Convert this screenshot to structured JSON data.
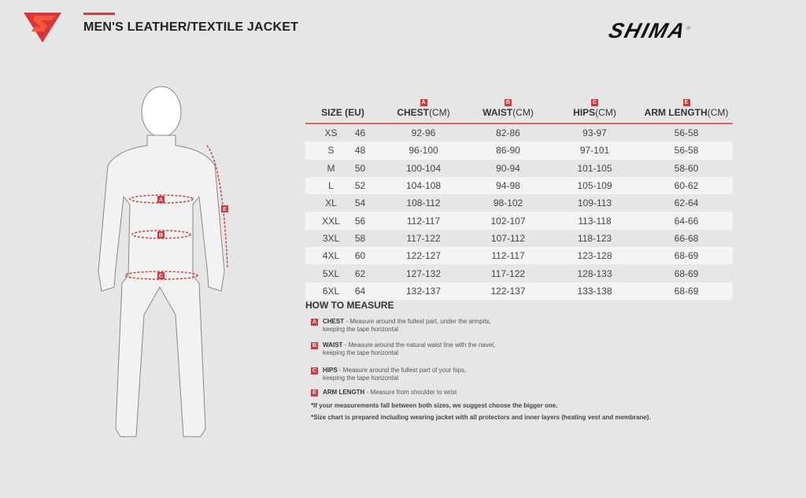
{
  "header": {
    "title": "MEN'S LEATHER/TEXTILE JACKET",
    "brand": "SHIMA",
    "registered": "®",
    "accent": "#d8343a"
  },
  "table": {
    "columns": [
      {
        "label": "SIZE (EU)",
        "unit": "",
        "badge": ""
      },
      {
        "label": "CHEST",
        "unit": "(CM)",
        "badge": "A"
      },
      {
        "label": "WAIST",
        "unit": "(CM)",
        "badge": "B"
      },
      {
        "label": "HIPS",
        "unit": "(CM)",
        "badge": "C"
      },
      {
        "label": "ARM LENGTH",
        "unit": "(CM)",
        "badge": "E"
      }
    ],
    "rows": [
      [
        "XS",
        "46",
        "92-96",
        "82-86",
        "93-97",
        "56-58"
      ],
      [
        "S",
        "48",
        "96-100",
        "86-90",
        "97-101",
        "56-58"
      ],
      [
        "M",
        "50",
        "100-104",
        "90-94",
        "101-105",
        "58-60"
      ],
      [
        "L",
        "52",
        "104-108",
        "94-98",
        "105-109",
        "60-62"
      ],
      [
        "XL",
        "54",
        "108-112",
        "98-102",
        "109-113",
        "62-64"
      ],
      [
        "XXL",
        "56",
        "112-117",
        "102-107",
        "113-118",
        "64-66"
      ],
      [
        "3XL",
        "58",
        "117-122",
        "107-112",
        "118-123",
        "66-68"
      ],
      [
        "4XL",
        "60",
        "122-127",
        "112-117",
        "123-128",
        "68-69"
      ],
      [
        "5XL",
        "62",
        "127-132",
        "117-122",
        "128-133",
        "68-69"
      ],
      [
        "6XL",
        "64",
        "132-137",
        "122-137",
        "133-138",
        "68-69"
      ]
    ]
  },
  "how_to": {
    "title": "HOW TO MEASURE",
    "items": [
      {
        "badge": "A",
        "name": "CHEST",
        "line1": " - Measure around the fullest part, under the armpits,",
        "line2": "keeping the tape horizontal"
      },
      {
        "badge": "B",
        "name": "WAIST",
        "line1": " - Measure around the natural waist line with the navel,",
        "line2": "keeping the tape horizontal"
      },
      {
        "badge": "C",
        "name": "HIPS",
        "line1": " - Measure around the fullest part of your hips,",
        "line2": "keeping the tape horizontal"
      },
      {
        "badge": "E",
        "name": "ARM LENGTH",
        "line1": " - Measure from shoulder to wrist",
        "line2": ""
      }
    ],
    "notes": [
      "*If your measurements fall between both sizes, we suggest choose the bigger one.",
      "*Size chart is prepared including wearing jacket with all protectors and inner layers (heating vest and membrane)."
    ]
  },
  "figure": {
    "labels": [
      "A",
      "B",
      "C",
      "E"
    ]
  }
}
